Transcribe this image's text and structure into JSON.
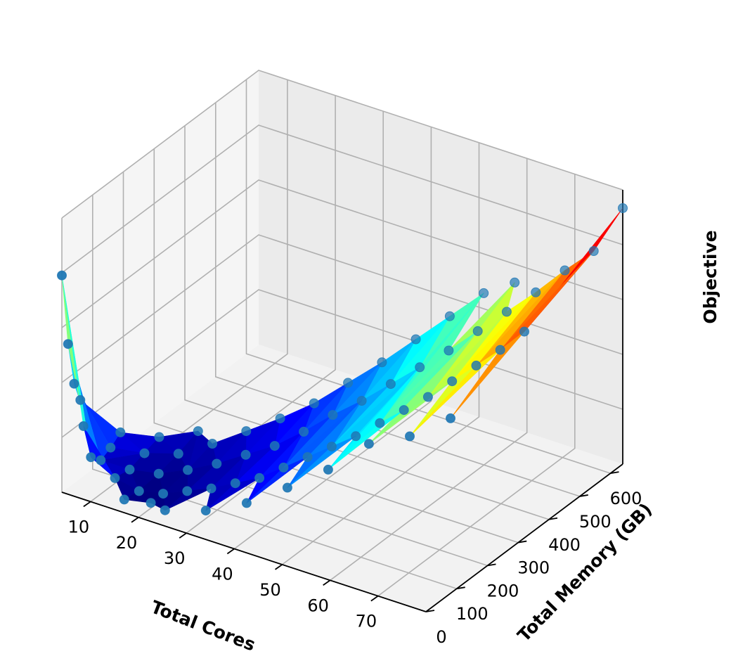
{
  "chart_data": {
    "type": "surface3d",
    "title": "",
    "xlabel": "Total Cores",
    "ylabel": "Total Memory (GB)",
    "zlabel": "Objective",
    "xlim": [
      4,
      80
    ],
    "ylim": [
      0,
      640
    ],
    "x_ticks": [
      10,
      20,
      30,
      40,
      50,
      60,
      70
    ],
    "y_ticks": [
      0,
      100,
      200,
      300,
      400,
      500,
      600
    ],
    "colormap": "jet",
    "marker_color": "#1f77b4",
    "pane_color": "#f2f2f2",
    "grid": true,
    "points_columns": [
      "cores",
      "memory_gb",
      "objective"
    ],
    "points": [
      [
        4,
        0,
        0.83
      ],
      [
        4,
        20,
        0.55
      ],
      [
        4,
        40,
        0.38
      ],
      [
        4,
        60,
        0.3
      ],
      [
        8,
        8,
        0.27
      ],
      [
        8,
        32,
        0.13
      ],
      [
        8,
        64,
        0.09
      ],
      [
        8,
        96,
        0.11
      ],
      [
        8,
        128,
        0.14
      ],
      [
        12,
        48,
        0.06
      ],
      [
        12,
        96,
        0.05
      ],
      [
        12,
        144,
        0.07
      ],
      [
        12,
        192,
        0.09
      ],
      [
        16,
        16,
        0.03
      ],
      [
        16,
        64,
        0.02
      ],
      [
        16,
        128,
        0.03
      ],
      [
        16,
        192,
        0.05
      ],
      [
        16,
        256,
        0.08
      ],
      [
        20,
        40,
        0.02
      ],
      [
        20,
        80,
        0.02
      ],
      [
        20,
        160,
        0.04
      ],
      [
        20,
        240,
        0.07
      ],
      [
        24,
        24,
        0.03
      ],
      [
        24,
        96,
        0.04
      ],
      [
        24,
        192,
        0.06
      ],
      [
        24,
        288,
        0.1
      ],
      [
        28,
        112,
        0.06
      ],
      [
        28,
        224,
        0.09
      ],
      [
        28,
        336,
        0.13
      ],
      [
        32,
        32,
        0.07
      ],
      [
        32,
        128,
        0.09
      ],
      [
        32,
        256,
        0.12
      ],
      [
        32,
        384,
        0.17
      ],
      [
        36,
        144,
        0.12
      ],
      [
        36,
        288,
        0.17
      ],
      [
        36,
        432,
        0.23
      ],
      [
        40,
        40,
        0.14
      ],
      [
        40,
        160,
        0.17
      ],
      [
        40,
        320,
        0.23
      ],
      [
        40,
        480,
        0.29
      ],
      [
        44,
        176,
        0.22
      ],
      [
        44,
        352,
        0.28
      ],
      [
        44,
        528,
        0.36
      ],
      [
        48,
        48,
        0.24
      ],
      [
        48,
        192,
        0.27
      ],
      [
        48,
        384,
        0.34
      ],
      [
        48,
        576,
        0.43
      ],
      [
        52,
        208,
        0.32
      ],
      [
        52,
        416,
        0.4
      ],
      [
        52,
        624,
        0.5
      ],
      [
        56,
        56,
        0.35
      ],
      [
        56,
        224,
        0.38
      ],
      [
        56,
        448,
        0.46
      ],
      [
        60,
        240,
        0.44
      ],
      [
        60,
        480,
        0.53
      ],
      [
        60,
        600,
        0.61
      ],
      [
        64,
        64,
        0.49
      ],
      [
        64,
        256,
        0.5
      ],
      [
        64,
        512,
        0.6
      ],
      [
        68,
        272,
        0.57
      ],
      [
        68,
        544,
        0.67
      ],
      [
        72,
        72,
        0.56
      ],
      [
        72,
        288,
        0.64
      ],
      [
        72,
        576,
        0.75
      ],
      [
        76,
        304,
        0.71
      ],
      [
        76,
        608,
        0.82
      ],
      [
        80,
        80,
        0.67
      ],
      [
        80,
        320,
        0.79
      ],
      [
        80,
        640,
        0.98
      ]
    ]
  }
}
